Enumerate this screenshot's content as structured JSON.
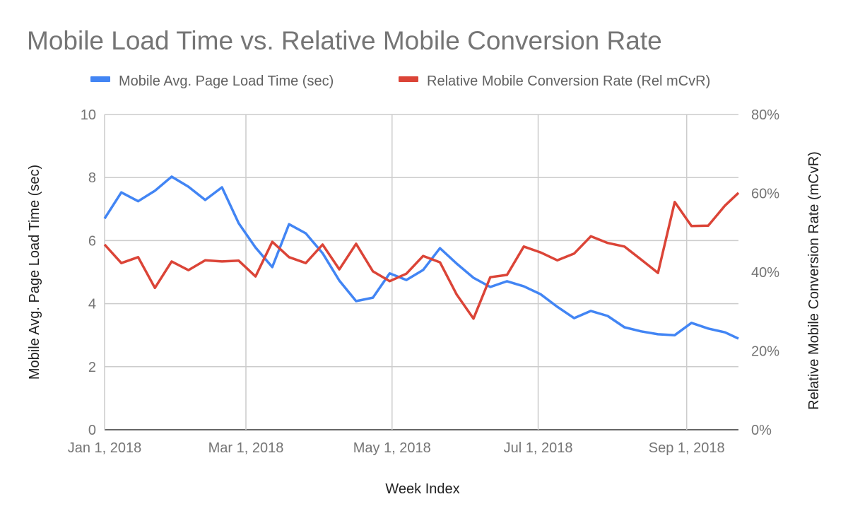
{
  "chart_data": {
    "type": "line",
    "title": "Mobile Load Time vs. Relative Mobile Conversion Rate",
    "xlabel": "Week Index",
    "ylabel_left": "Mobile Avg. Page Load Time (sec)",
    "ylabel_right": "Relative Mobile Conversion Rate (mCvR)",
    "legend_position": "top",
    "grid": true,
    "x_start": "2018-01-01",
    "x_step_days": 7,
    "x_ticks": [
      {
        "date": "2018-01-01",
        "label": "Jan 1, 2018"
      },
      {
        "date": "2018-03-01",
        "label": "Mar 1, 2018"
      },
      {
        "date": "2018-05-01",
        "label": "May 1, 2018"
      },
      {
        "date": "2018-07-01",
        "label": "Jul 1, 2018"
      },
      {
        "date": "2018-09-01",
        "label": "Sep 1, 2018"
      }
    ],
    "y_left": {
      "range": [
        0,
        10
      ],
      "ticks": [
        "0",
        "2",
        "4",
        "6",
        "8",
        "10"
      ],
      "tick_values": [
        0,
        2,
        4,
        6,
        8,
        10
      ]
    },
    "y_right": {
      "range": [
        0,
        80
      ],
      "ticks": [
        "0%",
        "20%",
        "40%",
        "60%",
        "80%"
      ],
      "tick_values": [
        0,
        20,
        40,
        60,
        80
      ]
    },
    "series": [
      {
        "name": "Mobile Avg. Page Load Time (sec)",
        "axis": "left",
        "color": "#4285f4",
        "values": [
          6.7,
          7.53,
          7.25,
          7.58,
          8.03,
          7.71,
          7.29,
          7.69,
          6.55,
          5.78,
          5.16,
          6.52,
          6.23,
          5.6,
          4.73,
          4.08,
          4.19,
          4.96,
          4.75,
          5.07,
          5.76,
          5.27,
          4.82,
          4.53,
          4.71,
          4.55,
          4.3,
          3.9,
          3.54,
          3.77,
          3.61,
          3.25,
          3.12,
          3.03,
          3.0,
          3.39,
          3.21,
          3.09,
          2.89
        ]
      },
      {
        "name": "Relative Mobile Conversion Rate (Rel mCvR)",
        "axis": "right",
        "color": "#db4437",
        "values": [
          47,
          42.3,
          43.8,
          36,
          42.7,
          40.5,
          43,
          42.7,
          42.9,
          38.9,
          47.7,
          43.8,
          42.3,
          47,
          40.7,
          47.2,
          40.2,
          37.7,
          39.6,
          44.1,
          42.5,
          34.3,
          28.2,
          38.7,
          39.3,
          46.5,
          45,
          43,
          44.7,
          49.1,
          47.4,
          46.5,
          43.2,
          39.8,
          57.8,
          51.7,
          51.8,
          56.9,
          60.1
        ]
      }
    ]
  }
}
